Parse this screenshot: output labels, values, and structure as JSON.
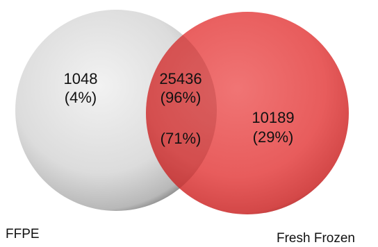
{
  "sets": [
    {
      "name": "FFPE",
      "fill": "#e6e6e6",
      "edge": "#4a4a4a",
      "only_count": "1048",
      "only_percent": "(4%)"
    },
    {
      "name": "Fresh Frozen",
      "fill": "#e85a5a",
      "edge": "#a02222",
      "only_count": "10189",
      "only_percent": "(29%)"
    }
  ],
  "overlap": {
    "count": "25436",
    "percent_of_ffpe": "(96%)",
    "percent_of_fresh_frozen": "(71%)",
    "fill": "#c94a4a"
  }
}
